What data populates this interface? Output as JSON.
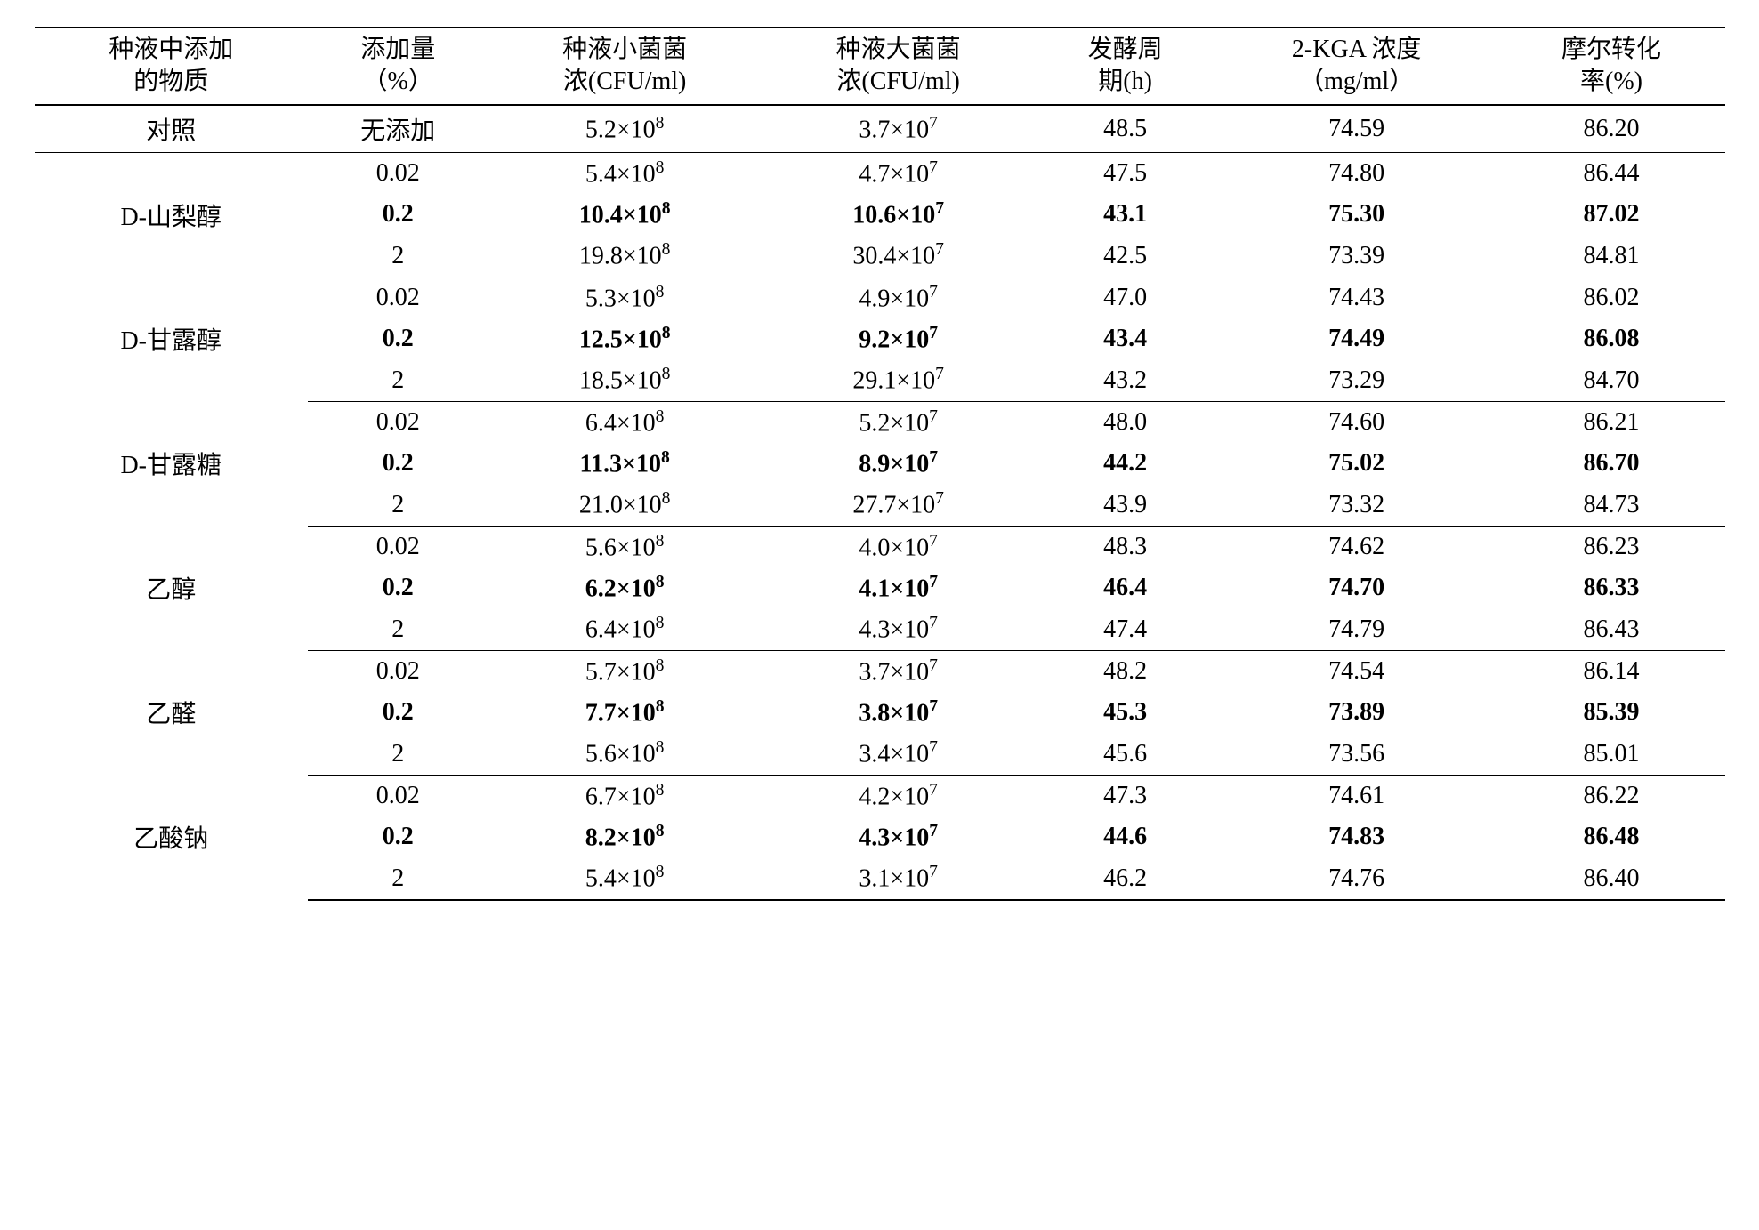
{
  "table": {
    "headers": [
      "种液中添加<br>的物质",
      "添加量<br>（%）",
      "种液小菌菌<br>浓(CFU/ml)",
      "种液大菌菌<br>浓(CFU/ml)",
      "发酵周<br>期(h)",
      "2-KGA 浓度<br>（mg/ml）",
      "摩尔转化<br>率(%)"
    ],
    "colors": {
      "text": "#000000",
      "background": "#ffffff",
      "border": "#000000"
    },
    "font": {
      "family": "Times New Roman, SimSun, serif",
      "size_pt": 28,
      "header_weight": "normal"
    },
    "groups": [
      {
        "substance": "对照",
        "rows": [
          {
            "amount": "无添加",
            "small": {
              "coef": "5.2",
              "exp": "8"
            },
            "large": {
              "coef": "3.7",
              "exp": "7"
            },
            "period": "48.5",
            "kga": "74.59",
            "molar": "86.20",
            "bold": false
          }
        ]
      },
      {
        "substance": "D-山梨醇",
        "rows": [
          {
            "amount": "0.02",
            "small": {
              "coef": "5.4",
              "exp": "8"
            },
            "large": {
              "coef": "4.7",
              "exp": "7"
            },
            "period": "47.5",
            "kga": "74.80",
            "molar": "86.44",
            "bold": false
          },
          {
            "amount": "0.2",
            "small": {
              "coef": "10.4",
              "exp": "8"
            },
            "large": {
              "coef": "10.6",
              "exp": "7"
            },
            "period": "43.1",
            "kga": "75.30",
            "molar": "87.02",
            "bold": true
          },
          {
            "amount": "2",
            "small": {
              "coef": "19.8",
              "exp": "8"
            },
            "large": {
              "coef": "30.4",
              "exp": "7"
            },
            "period": "42.5",
            "kga": "73.39",
            "molar": "84.81",
            "bold": false
          }
        ]
      },
      {
        "substance": "D-甘露醇",
        "rows": [
          {
            "amount": "0.02",
            "small": {
              "coef": "5.3",
              "exp": "8"
            },
            "large": {
              "coef": "4.9",
              "exp": "7"
            },
            "period": "47.0",
            "kga": "74.43",
            "molar": "86.02",
            "bold": false
          },
          {
            "amount": "0.2",
            "small": {
              "coef": "12.5",
              "exp": "8"
            },
            "large": {
              "coef": "9.2",
              "exp": "7"
            },
            "period": "43.4",
            "kga": "74.49",
            "molar": "86.08",
            "bold": true
          },
          {
            "amount": "2",
            "small": {
              "coef": "18.5",
              "exp": "8"
            },
            "large": {
              "coef": "29.1",
              "exp": "7"
            },
            "period": "43.2",
            "kga": "73.29",
            "molar": "84.70",
            "bold": false
          }
        ]
      },
      {
        "substance": "D-甘露糖",
        "rows": [
          {
            "amount": "0.02",
            "small": {
              "coef": "6.4",
              "exp": "8"
            },
            "large": {
              "coef": "5.2",
              "exp": "7"
            },
            "period": "48.0",
            "kga": "74.60",
            "molar": "86.21",
            "bold": false
          },
          {
            "amount": "0.2",
            "small": {
              "coef": "11.3",
              "exp": "8"
            },
            "large": {
              "coef": "8.9",
              "exp": "7"
            },
            "period": "44.2",
            "kga": "75.02",
            "molar": "86.70",
            "bold": true
          },
          {
            "amount": "2",
            "small": {
              "coef": "21.0",
              "exp": "8"
            },
            "large": {
              "coef": "27.7",
              "exp": "7"
            },
            "period": "43.9",
            "kga": "73.32",
            "molar": "84.73",
            "bold": false
          }
        ]
      },
      {
        "substance": "乙醇",
        "rows": [
          {
            "amount": "0.02",
            "small": {
              "coef": "5.6",
              "exp": "8"
            },
            "large": {
              "coef": "4.0",
              "exp": "7"
            },
            "period": "48.3",
            "kga": "74.62",
            "molar": "86.23",
            "bold": false
          },
          {
            "amount": "0.2",
            "small": {
              "coef": "6.2",
              "exp": "8"
            },
            "large": {
              "coef": "4.1",
              "exp": "7"
            },
            "period": "46.4",
            "kga": "74.70",
            "molar": "86.33",
            "bold": true
          },
          {
            "amount": "2",
            "small": {
              "coef": "6.4",
              "exp": "8"
            },
            "large": {
              "coef": "4.3",
              "exp": "7"
            },
            "period": "47.4",
            "kga": "74.79",
            "molar": "86.43",
            "bold": false
          }
        ]
      },
      {
        "substance": "乙醛",
        "rows": [
          {
            "amount": "0.02",
            "small": {
              "coef": "5.7",
              "exp": "8"
            },
            "large": {
              "coef": "3.7",
              "exp": "7"
            },
            "period": "48.2",
            "kga": "74.54",
            "molar": "86.14",
            "bold": false
          },
          {
            "amount": "0.2",
            "small": {
              "coef": "7.7",
              "exp": "8"
            },
            "large": {
              "coef": "3.8",
              "exp": "7"
            },
            "period": "45.3",
            "kga": "73.89",
            "molar": "85.39",
            "bold": true
          },
          {
            "amount": "2",
            "small": {
              "coef": "5.6",
              "exp": "8"
            },
            "large": {
              "coef": "3.4",
              "exp": "7"
            },
            "period": "45.6",
            "kga": "73.56",
            "molar": "85.01",
            "bold": false
          }
        ]
      },
      {
        "substance": "乙酸钠",
        "rows": [
          {
            "amount": "0.02",
            "small": {
              "coef": "6.7",
              "exp": "8"
            },
            "large": {
              "coef": "4.2",
              "exp": "7"
            },
            "period": "47.3",
            "kga": "74.61",
            "molar": "86.22",
            "bold": false
          },
          {
            "amount": "0.2",
            "small": {
              "coef": "8.2",
              "exp": "8"
            },
            "large": {
              "coef": "4.3",
              "exp": "7"
            },
            "period": "44.6",
            "kga": "74.83",
            "molar": "86.48",
            "bold": true
          },
          {
            "amount": "2",
            "small": {
              "coef": "5.4",
              "exp": "8"
            },
            "large": {
              "coef": "3.1",
              "exp": "7"
            },
            "period": "46.2",
            "kga": "74.76",
            "molar": "86.40",
            "bold": false
          }
        ]
      }
    ]
  }
}
